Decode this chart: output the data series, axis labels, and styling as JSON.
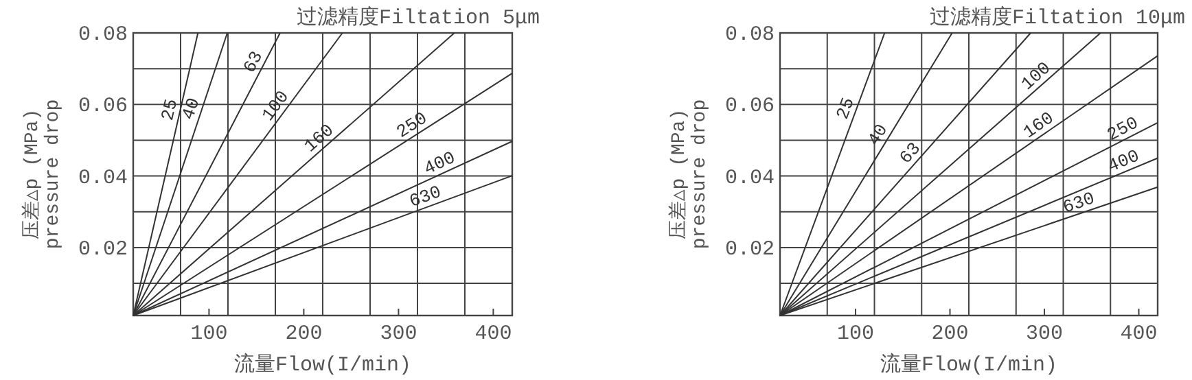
{
  "chart_data": [
    {
      "type": "line",
      "title": "过滤精度Filtation 5μm",
      "xlabel": "流量Flow(I/min)",
      "ylabel": "压差△p (MPa)\npressure drop",
      "xlim": [
        20,
        420
      ],
      "ylim": [
        0.001,
        0.08
      ],
      "xticks": [
        {
          "value": 70,
          "label": null
        },
        100,
        {
          "value": 120,
          "label": null
        },
        {
          "value": 170,
          "label": null
        },
        200,
        {
          "value": 220,
          "label": null
        },
        {
          "value": 270,
          "label": null
        },
        300,
        {
          "value": 320,
          "label": null
        },
        {
          "value": 370,
          "label": null
        },
        400
      ],
      "yticks": [
        {
          "value": 0.01,
          "label": null
        },
        0.02,
        {
          "value": 0.03,
          "label": null
        },
        0.04,
        {
          "value": 0.05,
          "label": null
        },
        0.06,
        {
          "value": 0.07,
          "label": null
        },
        0.08
      ],
      "grid": true,
      "marker": "none",
      "line_style": "solid",
      "series": [
        {
          "name": "25",
          "color": "#333333",
          "x": [
            20,
            88.3
          ],
          "values": [
            0.001,
            0.08
          ]
        },
        {
          "name": "40",
          "color": "#333333",
          "x": [
            20,
            119.3
          ],
          "values": [
            0.001,
            0.08
          ]
        },
        {
          "name": "63",
          "color": "#333333",
          "x": [
            20,
            175
          ],
          "values": [
            0.001,
            0.08
          ]
        },
        {
          "name": "100",
          "color": "#333333",
          "x": [
            20,
            240.8
          ],
          "values": [
            0.001,
            0.08
          ]
        },
        {
          "name": "160",
          "color": "#333333",
          "x": [
            20,
            359
          ],
          "values": [
            0.001,
            0.08
          ]
        },
        {
          "name": "250",
          "color": "#333333",
          "x": [
            20,
            420
          ],
          "values": [
            0.001,
            0.0687
          ]
        },
        {
          "name": "400",
          "color": "#333333",
          "x": [
            20,
            420
          ],
          "values": [
            0.001,
            0.0497
          ]
        },
        {
          "name": "630",
          "color": "#333333",
          "x": [
            20,
            420
          ],
          "values": [
            0.001,
            0.0401
          ]
        }
      ]
    },
    {
      "type": "line",
      "title": "过滤精度Filtation 10μm",
      "xlabel": "流量Flow(I/min)",
      "ylabel": "压差△p (MPa)\npressure drop",
      "xlim": [
        20,
        420
      ],
      "ylim": [
        0.001,
        0.08
      ],
      "xticks": [
        {
          "value": 70,
          "label": null
        },
        100,
        {
          "value": 120,
          "label": null
        },
        {
          "value": 170,
          "label": null
        },
        200,
        {
          "value": 220,
          "label": null
        },
        {
          "value": 270,
          "label": null
        },
        300,
        {
          "value": 320,
          "label": null
        },
        {
          "value": 370,
          "label": null
        },
        400
      ],
      "yticks": [
        {
          "value": 0.01,
          "label": null
        },
        0.02,
        {
          "value": 0.03,
          "label": null
        },
        0.04,
        {
          "value": 0.05,
          "label": null
        },
        0.06,
        {
          "value": 0.07,
          "label": null
        },
        0.08
      ],
      "grid": true,
      "marker": "none",
      "line_style": "solid",
      "series": [
        {
          "name": "25",
          "color": "#333333",
          "x": [
            20,
            130.8
          ],
          "values": [
            0.001,
            0.08
          ]
        },
        {
          "name": "40",
          "color": "#333333",
          "x": [
            20,
            202.3
          ],
          "values": [
            0.001,
            0.08
          ]
        },
        {
          "name": "63",
          "color": "#333333",
          "x": [
            20,
            285.5
          ],
          "values": [
            0.001,
            0.08
          ]
        },
        {
          "name": "100",
          "color": "#333333",
          "x": [
            20,
            359.5
          ],
          "values": [
            0.001,
            0.08
          ]
        },
        {
          "name": "160",
          "color": "#333333",
          "x": [
            20,
            420
          ],
          "values": [
            0.001,
            0.0736
          ]
        },
        {
          "name": "250",
          "color": "#333333",
          "x": [
            20,
            420
          ],
          "values": [
            0.001,
            0.0549
          ]
        },
        {
          "name": "400",
          "color": "#333333",
          "x": [
            20,
            420
          ],
          "values": [
            0.001,
            0.045
          ]
        },
        {
          "name": "630",
          "color": "#333333",
          "x": [
            20,
            420
          ],
          "values": [
            0.001,
            0.0369
          ]
        }
      ]
    }
  ]
}
